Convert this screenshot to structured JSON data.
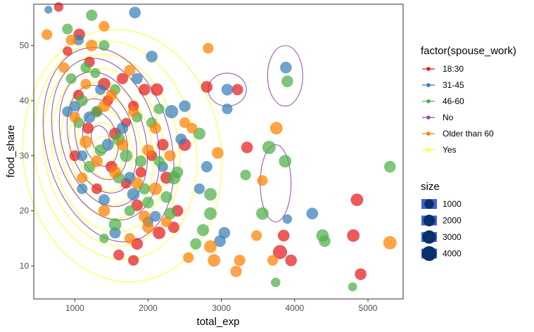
{
  "chart_data": {
    "type": "scatter",
    "title": "",
    "xlabel": "total_exp",
    "ylabel": "food_share",
    "xlim": [
      440,
      5480
    ],
    "ylim": [
      4,
      57.5
    ],
    "x_ticks": [
      1000,
      2000,
      3000,
      4000,
      5000
    ],
    "y_ticks": [
      10,
      20,
      30,
      40,
      50
    ],
    "grid": false,
    "legend_placement": "right",
    "color_legend": {
      "title": "factor(spouse_work)",
      "entries": [
        {
          "key": "18:30",
          "color": "#e41a1c"
        },
        {
          "key": "31-45",
          "color": "#377eb8"
        },
        {
          "key": "46-60",
          "color": "#4daf4a"
        },
        {
          "key": "No",
          "color": "#984ea3"
        },
        {
          "key": "Older than 60",
          "color": "#ff7f00"
        },
        {
          "key": "Yes",
          "color": "#ffff33"
        }
      ]
    },
    "size_legend": {
      "title": "size",
      "entries": [
        {
          "label": "1000",
          "value": 1000
        },
        {
          "label": "2000",
          "value": 2000
        },
        {
          "label": "3000",
          "value": 3000
        },
        {
          "label": "4000",
          "value": 4000
        }
      ],
      "color": "#08306b",
      "box_color": "#3f5fd6"
    },
    "contours": [
      {
        "group": "Yes",
        "color": "#ffff33",
        "levels": [
          {
            "cx": 1400,
            "cy": 31,
            "rx": 150,
            "ry": 2.5,
            "rot": -10
          },
          {
            "cx": 1400,
            "cy": 31,
            "rx": 260,
            "ry": 5,
            "rot": -10
          },
          {
            "cx": 1410,
            "cy": 31,
            "rx": 370,
            "ry": 7.5,
            "rot": -10
          },
          {
            "cx": 1420,
            "cy": 31,
            "rx": 490,
            "ry": 10,
            "rot": -10
          },
          {
            "cx": 1440,
            "cy": 31,
            "rx": 620,
            "ry": 12.5,
            "rot": -10
          },
          {
            "cx": 1460,
            "cy": 31,
            "rx": 760,
            "ry": 15,
            "rot": -10
          },
          {
            "cx": 1500,
            "cy": 31,
            "rx": 920,
            "ry": 17.5,
            "rot": -10
          },
          {
            "cx": 1550,
            "cy": 31,
            "rx": 1100,
            "ry": 20,
            "rot": -10
          },
          {
            "cx": 1650,
            "cy": 30,
            "rx": 1350,
            "ry": 23,
            "rot": -8
          }
        ]
      },
      {
        "group": "No",
        "color": "#984ea3",
        "levels": [
          {
            "cx": 1350,
            "cy": 33,
            "rx": 120,
            "ry": 2.5,
            "rot": -15
          },
          {
            "cx": 1350,
            "cy": 33,
            "rx": 230,
            "ry": 5,
            "rot": -15
          },
          {
            "cx": 1360,
            "cy": 33,
            "rx": 340,
            "ry": 7.5,
            "rot": -15
          },
          {
            "cx": 1370,
            "cy": 33,
            "rx": 450,
            "ry": 10,
            "rot": -15
          },
          {
            "cx": 1390,
            "cy": 33,
            "rx": 570,
            "ry": 12.5,
            "rot": -15
          },
          {
            "cx": 1420,
            "cy": 33,
            "rx": 700,
            "ry": 15,
            "rot": -15
          },
          {
            "cx": 1460,
            "cy": 32,
            "rx": 850,
            "ry": 18,
            "rot": -15
          },
          {
            "cx": 3080,
            "cy": 42,
            "rx": 260,
            "ry": 3,
            "rot": 0
          },
          {
            "cx": 3870,
            "cy": 44.5,
            "rx": 240,
            "ry": 5.5,
            "rot": 0
          },
          {
            "cx": 3740,
            "cy": 25,
            "rx": 210,
            "ry": 7,
            "rot": 0
          }
        ]
      }
    ],
    "series": [
      {
        "name": "18:30",
        "color": "#e41a1c",
        "points": [
          {
            "x": 780,
            "y": 57,
            "size": 1000
          },
          {
            "x": 1060,
            "y": 52,
            "size": 2000
          },
          {
            "x": 900,
            "y": 49,
            "size": 1000
          },
          {
            "x": 1200,
            "y": 47,
            "size": 1500
          },
          {
            "x": 1650,
            "y": 44,
            "size": 1800
          },
          {
            "x": 1400,
            "y": 43,
            "size": 2500
          },
          {
            "x": 1050,
            "y": 41,
            "size": 1500
          },
          {
            "x": 1800,
            "y": 39,
            "size": 1500
          },
          {
            "x": 1300,
            "y": 38,
            "size": 1000
          },
          {
            "x": 1700,
            "y": 36,
            "size": 1000
          },
          {
            "x": 1950,
            "y": 42,
            "size": 2000
          },
          {
            "x": 2120,
            "y": 42,
            "size": 2500
          },
          {
            "x": 1180,
            "y": 35,
            "size": 1800
          },
          {
            "x": 1550,
            "y": 34,
            "size": 2200
          },
          {
            "x": 2500,
            "y": 32,
            "size": 2500
          },
          {
            "x": 2200,
            "y": 32,
            "size": 2000
          },
          {
            "x": 1500,
            "y": 28,
            "size": 2000
          },
          {
            "x": 1900,
            "y": 27,
            "size": 1500
          },
          {
            "x": 2250,
            "y": 26,
            "size": 2200
          },
          {
            "x": 1700,
            "y": 25,
            "size": 1500
          },
          {
            "x": 1300,
            "y": 24,
            "size": 1500
          },
          {
            "x": 1850,
            "y": 21,
            "size": 2000
          },
          {
            "x": 2400,
            "y": 20,
            "size": 2000
          },
          {
            "x": 2150,
            "y": 16,
            "size": 2500
          },
          {
            "x": 1850,
            "y": 14,
            "size": 2000
          },
          {
            "x": 1600,
            "y": 12,
            "size": 1500
          },
          {
            "x": 1800,
            "y": 11,
            "size": 1500
          },
          {
            "x": 2800,
            "y": 42.5,
            "size": 2000
          },
          {
            "x": 3220,
            "y": 42,
            "size": 1800
          },
          {
            "x": 3350,
            "y": 31.5,
            "size": 2000
          },
          {
            "x": 3850,
            "y": 15.5,
            "size": 2000
          },
          {
            "x": 3800,
            "y": 12.5,
            "size": 3500
          },
          {
            "x": 3950,
            "y": 11,
            "size": 2000
          },
          {
            "x": 4800,
            "y": 15.5,
            "size": 2500
          },
          {
            "x": 4850,
            "y": 22,
            "size": 2500
          },
          {
            "x": 4900,
            "y": 8.5,
            "size": 2000
          },
          {
            "x": 2350,
            "y": 17,
            "size": 1800
          },
          {
            "x": 1000,
            "y": 30,
            "size": 1500
          },
          {
            "x": 1450,
            "y": 40,
            "size": 1500
          },
          {
            "x": 2050,
            "y": 30,
            "size": 1500
          }
        ]
      },
      {
        "name": "31-45",
        "color": "#377eb8",
        "points": [
          {
            "x": 640,
            "y": 56.5,
            "size": 500
          },
          {
            "x": 1820,
            "y": 56,
            "size": 2000
          },
          {
            "x": 1050,
            "y": 51,
            "size": 1500
          },
          {
            "x": 2050,
            "y": 48,
            "size": 2000
          },
          {
            "x": 1850,
            "y": 44,
            "size": 1800
          },
          {
            "x": 1350,
            "y": 42,
            "size": 1500
          },
          {
            "x": 1000,
            "y": 39,
            "size": 1500
          },
          {
            "x": 2500,
            "y": 39,
            "size": 2000
          },
          {
            "x": 2320,
            "y": 38,
            "size": 3000
          },
          {
            "x": 1200,
            "y": 37,
            "size": 2000
          },
          {
            "x": 900,
            "y": 38,
            "size": 1500
          },
          {
            "x": 1650,
            "y": 35,
            "size": 2000
          },
          {
            "x": 1450,
            "y": 32,
            "size": 2200
          },
          {
            "x": 2450,
            "y": 33,
            "size": 1800
          },
          {
            "x": 1100,
            "y": 30,
            "size": 1500
          },
          {
            "x": 2200,
            "y": 28,
            "size": 1500
          },
          {
            "x": 1750,
            "y": 26,
            "size": 2000
          },
          {
            "x": 1100,
            "y": 24,
            "size": 1500
          },
          {
            "x": 1400,
            "y": 22,
            "size": 1800
          },
          {
            "x": 1800,
            "y": 23,
            "size": 2500
          },
          {
            "x": 2100,
            "y": 19,
            "size": 1500
          },
          {
            "x": 1550,
            "y": 16,
            "size": 1800
          },
          {
            "x": 2000,
            "y": 18,
            "size": 1500
          },
          {
            "x": 2800,
            "y": 28,
            "size": 1800
          },
          {
            "x": 3080,
            "y": 42,
            "size": 2000
          },
          {
            "x": 3080,
            "y": 38.5,
            "size": 1500
          },
          {
            "x": 3880,
            "y": 46,
            "size": 2000
          },
          {
            "x": 3040,
            "y": 16,
            "size": 2000
          },
          {
            "x": 2980,
            "y": 14.5,
            "size": 2000
          },
          {
            "x": 2700,
            "y": 24,
            "size": 1500
          },
          {
            "x": 4240,
            "y": 19.5,
            "size": 2000
          },
          {
            "x": 3900,
            "y": 18.5,
            "size": 1000
          }
        ]
      },
      {
        "name": "46-60",
        "color": "#4daf4a",
        "points": [
          {
            "x": 1230,
            "y": 55.5,
            "size": 1800
          },
          {
            "x": 900,
            "y": 53,
            "size": 1500
          },
          {
            "x": 1400,
            "y": 50,
            "size": 1500
          },
          {
            "x": 1150,
            "y": 46,
            "size": 1500
          },
          {
            "x": 950,
            "y": 44,
            "size": 1500
          },
          {
            "x": 1550,
            "y": 42,
            "size": 1500
          },
          {
            "x": 1100,
            "y": 40,
            "size": 1800
          },
          {
            "x": 2150,
            "y": 38.5,
            "size": 1500
          },
          {
            "x": 1300,
            "y": 38,
            "size": 2000
          },
          {
            "x": 1850,
            "y": 37,
            "size": 1500
          },
          {
            "x": 1050,
            "y": 36,
            "size": 1500
          },
          {
            "x": 2050,
            "y": 36,
            "size": 1500
          },
          {
            "x": 2700,
            "y": 34,
            "size": 2200
          },
          {
            "x": 1600,
            "y": 33,
            "size": 2500
          },
          {
            "x": 1350,
            "y": 31,
            "size": 2000
          },
          {
            "x": 1900,
            "y": 29,
            "size": 2000
          },
          {
            "x": 2150,
            "y": 29,
            "size": 1500
          },
          {
            "x": 2400,
            "y": 27,
            "size": 2000
          },
          {
            "x": 2350,
            "y": 26,
            "size": 3000
          },
          {
            "x": 1200,
            "y": 28,
            "size": 2000
          },
          {
            "x": 1600,
            "y": 26,
            "size": 1800
          },
          {
            "x": 1950,
            "y": 24,
            "size": 1800
          },
          {
            "x": 2250,
            "y": 22.5,
            "size": 2000
          },
          {
            "x": 1750,
            "y": 20,
            "size": 1500
          },
          {
            "x": 2300,
            "y": 19.5,
            "size": 2000
          },
          {
            "x": 2850,
            "y": 19.5,
            "size": 2500
          },
          {
            "x": 2850,
            "y": 23,
            "size": 2500
          },
          {
            "x": 1550,
            "y": 17.5,
            "size": 2500
          },
          {
            "x": 1400,
            "y": 15,
            "size": 1000
          },
          {
            "x": 2750,
            "y": 16.5,
            "size": 2200
          },
          {
            "x": 2650,
            "y": 14,
            "size": 1800
          },
          {
            "x": 3330,
            "y": 26.5,
            "size": 1500
          },
          {
            "x": 3650,
            "y": 31.5,
            "size": 3000
          },
          {
            "x": 3870,
            "y": 29,
            "size": 2500
          },
          {
            "x": 3560,
            "y": 19.5,
            "size": 2500
          },
          {
            "x": 3900,
            "y": 43.5,
            "size": 2000
          },
          {
            "x": 4380,
            "y": 15.5,
            "size": 2500
          },
          {
            "x": 4410,
            "y": 14.5,
            "size": 2000
          },
          {
            "x": 3740,
            "y": 7,
            "size": 1000
          },
          {
            "x": 4790,
            "y": 6.2,
            "size": 800
          },
          {
            "x": 5300,
            "y": 28,
            "size": 2000
          },
          {
            "x": 1700,
            "y": 30,
            "size": 2500
          },
          {
            "x": 1280,
            "y": 45,
            "size": 1200
          },
          {
            "x": 2000,
            "y": 21.5,
            "size": 2000
          }
        ]
      },
      {
        "name": "Older than 60",
        "color": "#ff7f00",
        "points": [
          {
            "x": 620,
            "y": 52,
            "size": 1500
          },
          {
            "x": 1400,
            "y": 53.5,
            "size": 1500
          },
          {
            "x": 950,
            "y": 51,
            "size": 1500
          },
          {
            "x": 2820,
            "y": 49.5,
            "size": 1500
          },
          {
            "x": 1230,
            "y": 50,
            "size": 2000
          },
          {
            "x": 1750,
            "y": 45.5,
            "size": 1800
          },
          {
            "x": 850,
            "y": 46,
            "size": 1500
          },
          {
            "x": 1150,
            "y": 43,
            "size": 1500
          },
          {
            "x": 1500,
            "y": 41,
            "size": 1800
          },
          {
            "x": 1400,
            "y": 39,
            "size": 2000
          },
          {
            "x": 1000,
            "y": 37,
            "size": 1500
          },
          {
            "x": 1800,
            "y": 38,
            "size": 1500
          },
          {
            "x": 2100,
            "y": 35,
            "size": 1800
          },
          {
            "x": 1150,
            "y": 32.5,
            "size": 2500
          },
          {
            "x": 1650,
            "y": 32,
            "size": 2000
          },
          {
            "x": 2000,
            "y": 31,
            "size": 2000
          },
          {
            "x": 1300,
            "y": 29,
            "size": 2000
          },
          {
            "x": 2300,
            "y": 30,
            "size": 1800
          },
          {
            "x": 1550,
            "y": 27,
            "size": 2200
          },
          {
            "x": 1100,
            "y": 26,
            "size": 1500
          },
          {
            "x": 1850,
            "y": 25,
            "size": 2000
          },
          {
            "x": 2100,
            "y": 24,
            "size": 2500
          },
          {
            "x": 1400,
            "y": 20,
            "size": 2000
          },
          {
            "x": 1950,
            "y": 19,
            "size": 2000
          },
          {
            "x": 2250,
            "y": 18,
            "size": 1500
          },
          {
            "x": 2000,
            "y": 17,
            "size": 2000
          },
          {
            "x": 1750,
            "y": 15,
            "size": 1500
          },
          {
            "x": 2950,
            "y": 30.5,
            "size": 2000
          },
          {
            "x": 2600,
            "y": 35,
            "size": 1500
          },
          {
            "x": 2850,
            "y": 13.5,
            "size": 2500
          },
          {
            "x": 2900,
            "y": 11,
            "size": 2500
          },
          {
            "x": 3250,
            "y": 11,
            "size": 1800
          },
          {
            "x": 3200,
            "y": 9,
            "size": 1800
          },
          {
            "x": 3480,
            "y": 15.5,
            "size": 1500
          },
          {
            "x": 3750,
            "y": 35,
            "size": 2500
          },
          {
            "x": 3700,
            "y": 11,
            "size": 1500
          },
          {
            "x": 3560,
            "y": 25.5,
            "size": 1500
          },
          {
            "x": 5300,
            "y": 14.2,
            "size": 3000
          },
          {
            "x": 2500,
            "y": 36,
            "size": 1500
          },
          {
            "x": 2550,
            "y": 11.5,
            "size": 1500
          }
        ]
      }
    ]
  }
}
